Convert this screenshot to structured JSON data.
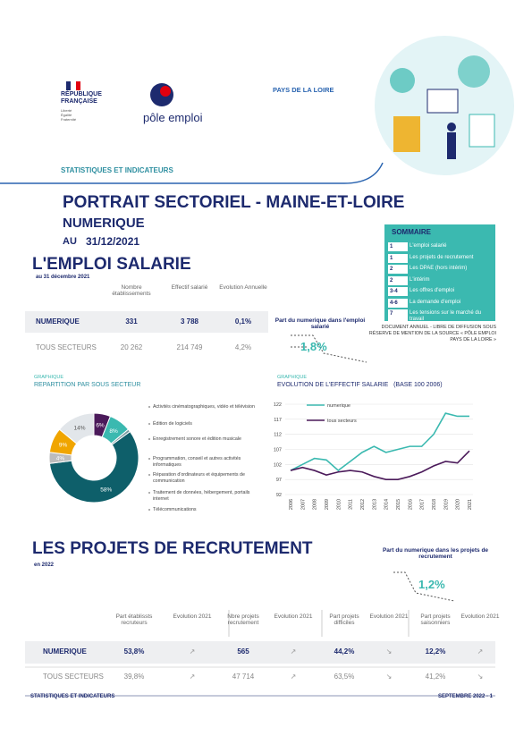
{
  "header": {
    "region": "PAYS DE LA LOIRE",
    "republique": "RÉPUBLIQUE FRANÇAISE",
    "devise": "Liberté Égalité Fraternité",
    "logo": "pôle emploi",
    "kicker": "STATISTIQUES ET INDICATEURS",
    "title": "PORTRAIT SECTORIEL - MAINE-ET-LOIRE",
    "sector": "NUMERIQUE",
    "date_prefix": "AU",
    "date": "31/12/2021"
  },
  "sommaire": {
    "title": "SOMMAIRE",
    "items": [
      [
        "1",
        "L'emploi salarié"
      ],
      [
        "1",
        "Les projets de recrutement"
      ],
      [
        "2",
        "Les DPAE (hors intérim)"
      ],
      [
        "2",
        "L'intérim"
      ],
      [
        "3-4",
        "Les offres d'emploi"
      ],
      [
        "4-6",
        "La demande d'emploi"
      ],
      [
        "7",
        "Les tensions sur le marché du travail"
      ]
    ],
    "note": "DOCUMENT ANNUEL - LIBRE DE DIFFUSION SOUS RÉSERVE DE MENTION DE LA SOURCE « PÔLE EMPLOI PAYS DE LA LOIRE »"
  },
  "emploi_salarie": {
    "title": "L'EMPLOI SALARIE",
    "subtitle": "au 31 décembre 2021",
    "headers": [
      "Nombre établissements",
      "Effectif salarié",
      "Evolution Annuelle"
    ],
    "rows": [
      [
        "NUMERIQUE",
        "331",
        "3 788",
        "0,1%"
      ],
      [
        "TOUS SECTEURS",
        "20 262",
        "214 749",
        "4,2%"
      ]
    ],
    "part_label": "Part du numerique dans l'emploi salarié",
    "part_value": "1,8%"
  },
  "chart_data": [
    {
      "type": "donut",
      "kicker": "GRAPHIQUE",
      "title": "REPARTITION PAR SOUS SECTEUR",
      "categories": [
        "Activités cinématographiques, vidéo et télévision",
        "Édition de logiciels",
        "Enregistrement sonore et édition musicale",
        "Programmation, conseil et autres activités informatiques",
        "Réparation d'ordinateurs et équipements de communication",
        "Traitement de données, hébergement, portails internet",
        "Télécommunications"
      ],
      "values": [
        6,
        8,
        1,
        58,
        4,
        9,
        14
      ],
      "value_labels": [
        "6%",
        "8%",
        null,
        "58%",
        "4%",
        "9%",
        "14%"
      ],
      "colors": [
        "#4b1a5a",
        "#3bb9b0",
        "#7a9aa0",
        "#0e5f6a",
        "#bcbcbc",
        "#f0a500",
        "#e2e6ea"
      ]
    },
    {
      "type": "line",
      "kicker": "GRAPHIQUE",
      "title": "EVOLUTION DE L'EFFECTIF SALARIE   (BASE 100 2006)",
      "categories": [
        "2006",
        "2007",
        "2008",
        "2009",
        "2010",
        "2011",
        "2012",
        "2013",
        "2014",
        "2015",
        "2016",
        "2017",
        "2018",
        "2019",
        "2020",
        "2021"
      ],
      "series": [
        {
          "name": "numerique",
          "color": "#3bb9b0",
          "values": [
            100,
            102,
            104,
            103.5,
            100,
            103,
            106,
            108,
            106,
            107,
            108,
            108,
            112,
            119,
            118,
            118
          ]
        },
        {
          "name": "tous secteurs",
          "color": "#4b1a5a",
          "values": [
            100,
            101,
            100,
            98.5,
            99.5,
            100,
            99.5,
            98,
            97,
            97,
            98,
            99.5,
            101.5,
            103,
            102.5,
            106.5
          ]
        }
      ],
      "ylim": [
        92,
        122
      ],
      "yticks": [
        92,
        97,
        102,
        107,
        112,
        117,
        122
      ],
      "grid": true
    }
  ],
  "recrutement": {
    "title": "LES PROJETS DE RECRUTEMENT",
    "subtitle": "en 2022",
    "part_label": "Part du numerique dans les projets de recrutement",
    "part_value": "1,2%",
    "headers": [
      "Part établissts recruteurs",
      "Evolution 2021",
      "Nbre projets recrutement",
      "Evolution 2021",
      "Part projets difficiles",
      "Evolution 2021",
      "Part projets saisonniers",
      "Evolution 2021"
    ],
    "rows": [
      [
        "NUMERIQUE",
        "53,8%",
        "↗",
        "565",
        "↗",
        "44,2%",
        "↘",
        "12,2%",
        "↗"
      ],
      [
        "TOUS SECTEURS",
        "39,8%",
        "↗",
        "47 714",
        "↗",
        "63,5%",
        "↘",
        "41,2%",
        "↘"
      ]
    ]
  },
  "footer": {
    "left": "STATISTIQUES ET INDICATEURS",
    "right": "SEPTEMBRE 2022 - 1"
  }
}
